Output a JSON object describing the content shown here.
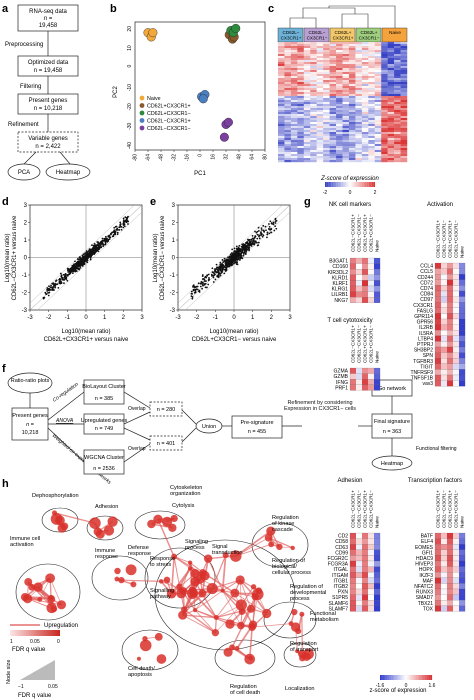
{
  "panels": {
    "a": "a",
    "b": "b",
    "c": "c",
    "d": "d",
    "e": "e",
    "f": "f",
    "g": "g",
    "h": "h"
  },
  "panel_a": {
    "box1_title": "RNA-seq data",
    "box1_n": "n =",
    "box1_val": "19,458",
    "step1": "Preprocessing",
    "box2_title": "Optimized data",
    "box2_n": "n = 19,458",
    "step2": "Filtering",
    "box3_title": "Present genes",
    "box3_n": "n = 10,218",
    "step3": "Refinement",
    "box4_title": "Variable genes",
    "box4_n": "n = 2,422",
    "pca": "PCA",
    "heatmap": "Heatmap"
  },
  "panel_b": {
    "xlabel": "PC1",
    "ylabel": "PC2",
    "xticks": [
      "-80",
      "-64",
      "-48",
      "-32",
      "-16",
      "0",
      "16",
      "32",
      "48",
      "64",
      "80"
    ],
    "yticks": [
      "20",
      "10",
      "0",
      "-10",
      "-20",
      "-30",
      "-40"
    ],
    "legend": [
      "Naive",
      "CD62L+CX3CR1+",
      "CD62L+CX3CR1−",
      "CD62L−CX3CR1+",
      "CD62L−CX3CR1−"
    ],
    "colors": [
      "#f3a83b",
      "#8a5a2b",
      "#2e8b3e",
      "#4a7fc1",
      "#7b3fa0"
    ]
  },
  "chart_data": [
    {
      "type": "scatter",
      "panel": "b",
      "xlabel": "PC1",
      "ylabel": "PC2",
      "xlim": [
        -80,
        80
      ],
      "ylim": [
        -40,
        20
      ],
      "series": [
        {
          "name": "Naive",
          "x": [
            -64,
            -60,
            -58
          ],
          "y": [
            15,
            13,
            15
          ]
        },
        {
          "name": "CD62L+CX3CR1+",
          "x": [
            36,
            40,
            42
          ],
          "y": [
            14,
            12,
            13
          ]
        },
        {
          "name": "CD62L+CX3CR1−",
          "x": [
            38,
            41,
            44
          ],
          "y": [
            16,
            15,
            17
          ]
        },
        {
          "name": "CD62L−CX3CR1+",
          "x": [
            2,
            6,
            4
          ],
          "y": [
            -15,
            -14,
            -16
          ]
        },
        {
          "name": "CD62L−CX3CR1−",
          "x": [
            32,
            35,
            30
          ],
          "y": [
            -28,
            -27,
            -34
          ]
        }
      ]
    },
    {
      "type": "scatter",
      "panel": "d",
      "xlabel": "Log10(mean ratio) CD62L+CX3CR1+ versus naive",
      "ylabel": "Log10(mean ratio) CD62L−CX3CR1+ versus naive",
      "xlim": [
        -3,
        3
      ],
      "ylim": [
        -3,
        3
      ]
    },
    {
      "type": "scatter",
      "panel": "e",
      "xlabel": "Log10(mean ratio) CD62L+CX3CR1− versus naive",
      "ylabel": "Log10(mean ratio) CD62L−CX3CR1− versus naive",
      "xlim": [
        -3,
        3
      ],
      "ylim": [
        -3,
        3
      ]
    }
  ],
  "panel_c": {
    "groups": [
      "CD62L− CX3CR1+",
      "CD62L− CX3CR1−",
      "CD62L+ CX3CR1+",
      "CD62L+ CX3CR1−",
      "Naive"
    ],
    "scale_title": "Z-score of expression",
    "scale_ticks": [
      "-2",
      "0",
      "2"
    ]
  },
  "panel_d": {
    "xt": [
      "-3",
      "-2",
      "-1",
      "0",
      "1",
      "2",
      "3"
    ],
    "yt": [
      "3",
      "2",
      "1",
      "0",
      "-1",
      "-2",
      "-3"
    ],
    "xlab1": "Log10(mean ratio)",
    "xlab2": "CD62L+CX3CR1+ versus naive",
    "ylab1": "Log10(mean ratio)",
    "ylab2": "CD62L−CX3CR1+ versus naive"
  },
  "panel_e": {
    "xt": [
      "-3",
      "-2",
      "-1",
      "0",
      "1",
      "2",
      "3"
    ],
    "yt": [
      "3",
      "2",
      "1",
      "0",
      "-1",
      "-2",
      "-3"
    ],
    "xlab1": "Log10(mean ratio)",
    "xlab2": "CD62L+CX3CR1− versus naive",
    "ylab1": "Log10(mean ratio)",
    "ylab2": "CD62L−CX3CR1− versus naive"
  },
  "panel_f": {
    "ratio": "Ratio-ratio plots",
    "present": "Present genes",
    "present_n": "n =",
    "present_val": "10,218",
    "co_reg": "Co-regulation",
    "anova": "ANOVA",
    "wgcna_edge": "Weighted co-expression networks",
    "biolayout": "BioLayout Cluster",
    "biolayout_n": "n = 385",
    "upreg": "Upregulated genes",
    "upreg_n": "n = 749",
    "wgcna": "WGCNA Cluster",
    "wgcna_n": "n = 2536",
    "ov1": "n = 280",
    "ov2": "n = 401",
    "overlap1": "Overlap",
    "overlap2": "Overlap",
    "union": "Union",
    "presig": "Pre-signature",
    "presig_n": "n = 455",
    "refine": "Refinement by considering Expression in CX3CR1− cells",
    "goNet": "Go network",
    "final": "Final signature",
    "final_n": "n = 363",
    "functional": "Functional filtering",
    "heatmap": "Heatmap"
  },
  "panel_g": {
    "nk_title": "NK cell markers",
    "act_title": "Activation",
    "tcyto_title": "T cell cytotoxicity",
    "adh_title": "Adhesion",
    "tf_title": "Transcription factors",
    "cols": [
      "CD62L−CX3CR1+",
      "CD62L−CX3CR1−",
      "CD62L+CX3CR1+",
      "CD62L+CX3CR1−",
      "Naive"
    ],
    "nk_genes": [
      "B3GAT1",
      "CD160",
      "KIR3DL2",
      "KLRD1",
      "KLRF1",
      "KLRG1",
      "LILRB1",
      "NKG7"
    ],
    "tc_genes": [
      "GZMA",
      "GZMB",
      "IFNG",
      "PRF1"
    ],
    "act_genes": [
      "CCL4",
      "CCL5",
      "CD244",
      "CD72",
      "CD74",
      "CD84",
      "CD97",
      "CX3CR1",
      "FASLG",
      "GPR114",
      "GPR56",
      "IL2RB",
      "IL5RA",
      "LTBP4",
      "PTPRJ",
      "SH3BP2",
      "SPN",
      "TGFBR3",
      "TIGIT",
      "TNFRSF9",
      "TNFSF1B",
      "vav3"
    ],
    "adh_genes": [
      "CD2",
      "CD58",
      "CD63",
      "CD99",
      "FCGR2C",
      "FCGR3A",
      "ITGAL",
      "ITGAM",
      "ITGB1",
      "ITGB2",
      "PXN",
      "S1PR5",
      "SLAMF6",
      "SLAMF7"
    ],
    "tf_genes": [
      "BATF",
      "ELF4",
      "EOMES",
      "GFI1",
      "HDAC9",
      "HIVEP3",
      "HOPX",
      "IKZF3",
      "MAF",
      "NFATC2",
      "RUNX3",
      "SMAD7",
      "TBX21",
      "TOX"
    ],
    "scale_ticks": [
      "-1.6",
      "0",
      "1.6"
    ],
    "scale_title": "z-score of expression"
  },
  "panel_h": {
    "labels": [
      "Dephosphorylation",
      "Adhesion",
      "Cytoskeleton organization",
      "Cytolysis",
      "Immune cell activation",
      "Immune response",
      "Defense response",
      "Response to stress",
      "Signaling process",
      "Signal transduction",
      "Regulation of kinase cascade",
      "Regulation of biological/ cellular process",
      "Regulation of developmental process",
      "Signalling pathway",
      "Functional metabolism",
      "Regulation of transport",
      "Cell death/ apoptosis",
      "Regulation of cell death",
      "Localization"
    ],
    "upreg": "Upregulation",
    "fdr_ticks": [
      "1",
      "0.05",
      "0"
    ],
    "fdr": "FDR q value",
    "node_size": "Node size",
    "node_ticks": [
      "−1",
      "0.05"
    ],
    "node_fdr": "FDR q value"
  }
}
